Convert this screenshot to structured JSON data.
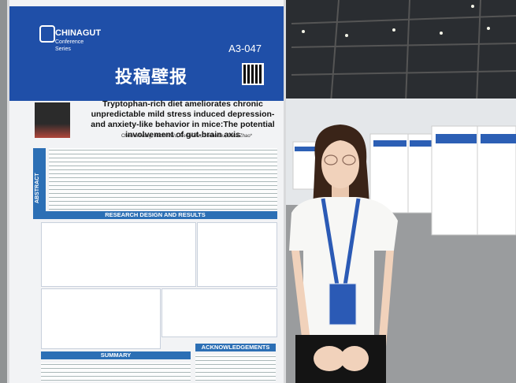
{
  "poster": {
    "series_brand": "CHINAGUT",
    "series_sub": "Conference Series",
    "board_id": "A3-047",
    "heading": "投稿壁报",
    "title": "Tryptophan-rich diet ameliorates chronic unpredictable mild stress induced depression- and anxiety-like behavior in mice:The potential involvement of gut-brain axis",
    "authors": "Chenna Wang, Jiaobin Wu, Peilin Zhu, Xuebo Liu, Beita Zhao*",
    "sections": {
      "abstract": "ABSTRACT",
      "design": "RESEARCH DESIGN AND RESULTS",
      "summary": "SUMMARY",
      "acknowledgements": "ACKNOWLEDGEMENTS"
    }
  }
}
